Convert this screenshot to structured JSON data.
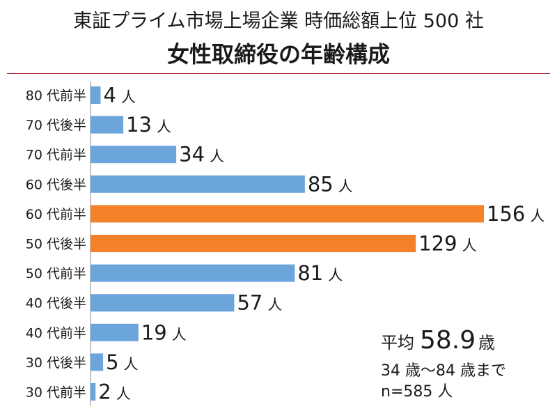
{
  "title": {
    "line1": "東証プライム市場上場企業 時価総額上位 500 社",
    "line2": "女性取締役の年齢構成"
  },
  "colors": {
    "default_bar": "#6ca4dc",
    "highlight_bar": "#f5812a",
    "divider": "#b2323b"
  },
  "chart_data": {
    "type": "bar",
    "orientation": "horizontal",
    "categories": [
      "80 代前半",
      "70 代後半",
      "70 代前半",
      "60 代後半",
      "60 代前半",
      "50 代後半",
      "50 代前半",
      "40 代後半",
      "40 代前半",
      "30 代後半",
      "30 代前半"
    ],
    "values": [
      4,
      13,
      34,
      85,
      156,
      129,
      81,
      57,
      19,
      5,
      2
    ],
    "value_unit": "人",
    "highlighted_categories": [
      "60 代前半",
      "50 代後半"
    ],
    "xlim": [
      0,
      156
    ],
    "grid": false,
    "legend": "none"
  },
  "stats": {
    "avg_label": "平均",
    "avg_value": "58.9",
    "avg_unit": "歳",
    "range": "34 歳～84 歳まで",
    "n": "n=585 人"
  }
}
